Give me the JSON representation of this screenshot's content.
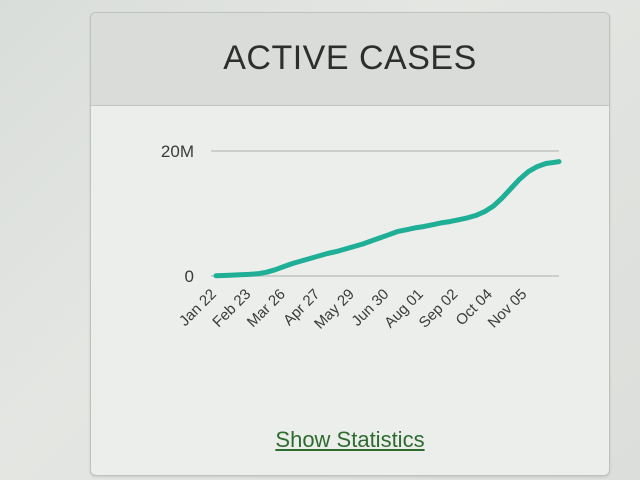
{
  "card": {
    "title": "ACTIVE CASES",
    "footer_link": "Show Statistics"
  },
  "colors": {
    "line": "#1fae96",
    "grid": "#b9bcb9",
    "text": "#3a3c3a",
    "link": "#2e6b2e"
  },
  "chart_data": {
    "type": "line",
    "title": "ACTIVE CASES",
    "xlabel": "",
    "ylabel": "",
    "y_tick_labels": [
      "0",
      "20M"
    ],
    "ylim": [
      0,
      20000000
    ],
    "grid": true,
    "legend": "none",
    "x_tick_labels": [
      "Jan 22",
      "Feb 23",
      "Mar 26",
      "Apr 27",
      "May 29",
      "Jun 30",
      "Aug 01",
      "Sep 02",
      "Oct 04",
      "Nov 05"
    ],
    "x": [
      0,
      7,
      15,
      22,
      30,
      38,
      46,
      54,
      62,
      70,
      78,
      86,
      94,
      102,
      110,
      118,
      126,
      134,
      142,
      150,
      158,
      166,
      174,
      182,
      190,
      198,
      206,
      214,
      222,
      230,
      238,
      246,
      254,
      262,
      270,
      278,
      286,
      294,
      302,
      310,
      314
    ],
    "series": [
      {
        "values": [
          50000,
          80000,
          150000,
          200000,
          250000,
          350000,
          600000,
          1000000,
          1500000,
          2000000,
          2400000,
          2800000,
          3200000,
          3600000,
          3900000,
          4300000,
          4700000,
          5100000,
          5600000,
          6100000,
          6600000,
          7100000,
          7400000,
          7700000,
          7900000,
          8200000,
          8500000,
          8700000,
          9000000,
          9300000,
          9700000,
          10300000,
          11200000,
          12500000,
          14000000,
          15500000,
          16700000,
          17500000,
          18000000,
          18200000,
          18300000
        ]
      }
    ]
  }
}
